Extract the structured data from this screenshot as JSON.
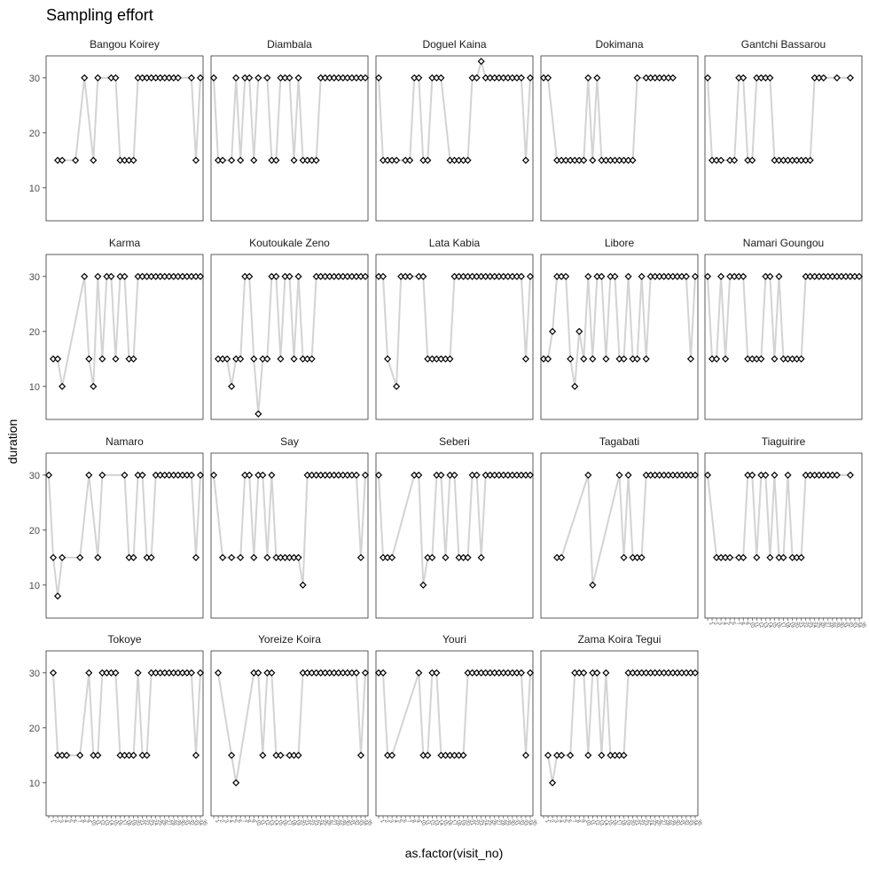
{
  "chart_data": {
    "type": "line",
    "title": "Sampling effort",
    "xlabel": "as.factor(visit_no)",
    "ylabel": "duration",
    "ylim": [
      4,
      34
    ],
    "yticks": [
      10,
      20,
      30
    ],
    "x_levels": 35,
    "facet_ncol": 5,
    "line_color": "#d3d3d3",
    "point_stroke": "#000000",
    "panel_border": "#333333",
    "facets": [
      {
        "name": "Bangou Koirey",
        "x": [
          3,
          4,
          7,
          9,
          11,
          12,
          15,
          16,
          17,
          18,
          19,
          20,
          21,
          22,
          23,
          24,
          25,
          26,
          27,
          28,
          29,
          30,
          33,
          34,
          35
        ],
        "y": [
          15,
          15,
          15,
          30,
          15,
          30,
          30,
          30,
          15,
          15,
          15,
          15,
          30,
          30,
          30,
          30,
          30,
          30,
          30,
          30,
          30,
          30,
          30,
          15,
          30
        ]
      },
      {
        "name": "Diambala",
        "x": [
          1,
          2,
          3,
          5,
          6,
          7,
          8,
          9,
          10,
          11,
          13,
          14,
          15,
          16,
          17,
          18,
          19,
          20,
          21,
          22,
          23,
          24,
          25,
          26,
          27,
          28,
          29,
          30,
          31,
          32,
          33,
          34,
          35
        ],
        "y": [
          30,
          15,
          15,
          15,
          30,
          15,
          30,
          30,
          15,
          30,
          30,
          15,
          15,
          30,
          30,
          30,
          15,
          30,
          15,
          15,
          15,
          15,
          30,
          30,
          30,
          30,
          30,
          30,
          30,
          30,
          30,
          30,
          30
        ]
      },
      {
        "name": "Doguel Kaina",
        "x": [
          1,
          2,
          3,
          4,
          5,
          7,
          8,
          9,
          10,
          11,
          12,
          13,
          14,
          15,
          17,
          18,
          19,
          20,
          21,
          22,
          23,
          24,
          25,
          26,
          27,
          28,
          29,
          30,
          31,
          32,
          33,
          34,
          35
        ],
        "y": [
          30,
          15,
          15,
          15,
          15,
          15,
          15,
          30,
          30,
          15,
          15,
          30,
          30,
          30,
          15,
          15,
          15,
          15,
          15,
          30,
          30,
          33,
          30,
          30,
          30,
          30,
          30,
          30,
          30,
          30,
          30,
          15,
          30
        ]
      },
      {
        "name": "Dokimana",
        "x": [
          1,
          2,
          4,
          5,
          6,
          7,
          8,
          9,
          10,
          11,
          12,
          13,
          14,
          15,
          16,
          17,
          18,
          19,
          20,
          21,
          22,
          24,
          25,
          26,
          27,
          28,
          29,
          30
        ],
        "y": [
          30,
          30,
          15,
          15,
          15,
          15,
          15,
          15,
          15,
          30,
          15,
          30,
          15,
          15,
          15,
          15,
          15,
          15,
          15,
          15,
          30,
          30,
          30,
          30,
          30,
          30,
          30,
          30
        ]
      },
      {
        "name": "Gantchi Bassarou",
        "x": [
          1,
          2,
          3,
          4,
          6,
          7,
          8,
          9,
          10,
          11,
          12,
          13,
          14,
          15,
          16,
          17,
          18,
          19,
          20,
          21,
          22,
          23,
          24,
          25,
          26,
          27,
          30,
          33
        ],
        "y": [
          30,
          15,
          15,
          15,
          15,
          15,
          30,
          30,
          15,
          15,
          30,
          30,
          30,
          30,
          15,
          15,
          15,
          15,
          15,
          15,
          15,
          15,
          15,
          30,
          30,
          30,
          30,
          30
        ]
      },
      {
        "name": "Karma",
        "x": [
          2,
          3,
          4,
          9,
          10,
          11,
          12,
          13,
          14,
          15,
          16,
          17,
          18,
          19,
          20,
          21,
          22,
          23,
          24,
          25,
          26,
          27,
          28,
          29,
          30,
          31,
          32,
          33,
          34,
          35
        ],
        "y": [
          15,
          15,
          10,
          30,
          15,
          10,
          30,
          15,
          30,
          30,
          15,
          30,
          30,
          15,
          15,
          30,
          30,
          30,
          30,
          30,
          30,
          30,
          30,
          30,
          30,
          30,
          30,
          30,
          30,
          30
        ]
      },
      {
        "name": "Koutoukale Zeno",
        "x": [
          2,
          3,
          4,
          5,
          6,
          7,
          8,
          9,
          10,
          11,
          12,
          13,
          14,
          15,
          16,
          17,
          18,
          19,
          20,
          21,
          22,
          23,
          24,
          25,
          26,
          27,
          28,
          29,
          30,
          31,
          32,
          33,
          34,
          35
        ],
        "y": [
          15,
          15,
          15,
          10,
          15,
          15,
          30,
          30,
          15,
          5,
          15,
          15,
          30,
          30,
          15,
          30,
          30,
          15,
          30,
          15,
          15,
          15,
          30,
          30,
          30,
          30,
          30,
          30,
          30,
          30,
          30,
          30,
          30,
          30
        ]
      },
      {
        "name": "Lata Kabia",
        "x": [
          1,
          2,
          3,
          5,
          6,
          7,
          8,
          10,
          11,
          12,
          13,
          14,
          15,
          16,
          17,
          18,
          19,
          20,
          21,
          22,
          23,
          24,
          25,
          26,
          27,
          28,
          29,
          30,
          31,
          32,
          33,
          34,
          35
        ],
        "y": [
          30,
          30,
          15,
          10,
          30,
          30,
          30,
          30,
          30,
          15,
          15,
          15,
          15,
          15,
          15,
          30,
          30,
          30,
          30,
          30,
          30,
          30,
          30,
          30,
          30,
          30,
          30,
          30,
          30,
          30,
          30,
          15,
          30
        ]
      },
      {
        "name": "Libore",
        "x": [
          1,
          2,
          3,
          4,
          5,
          6,
          7,
          8,
          9,
          10,
          11,
          12,
          13,
          14,
          15,
          16,
          17,
          18,
          19,
          20,
          21,
          22,
          23,
          24,
          25,
          26,
          27,
          28,
          29,
          30,
          31,
          32,
          33,
          34,
          35
        ],
        "y": [
          15,
          15,
          20,
          30,
          30,
          30,
          15,
          10,
          20,
          15,
          30,
          15,
          30,
          30,
          15,
          30,
          30,
          15,
          15,
          30,
          15,
          15,
          30,
          15,
          30,
          30,
          30,
          30,
          30,
          30,
          30,
          30,
          30,
          15,
          30
        ]
      },
      {
        "name": "Namari Goungou",
        "x": [
          1,
          2,
          3,
          4,
          5,
          6,
          7,
          8,
          9,
          10,
          11,
          12,
          13,
          14,
          15,
          16,
          17,
          18,
          19,
          20,
          21,
          22,
          23,
          24,
          25,
          26,
          27,
          28,
          29,
          30,
          31,
          32,
          33,
          34,
          35
        ],
        "y": [
          30,
          15,
          15,
          30,
          15,
          30,
          30,
          30,
          30,
          15,
          15,
          15,
          15,
          30,
          30,
          15,
          30,
          15,
          15,
          15,
          15,
          15,
          30,
          30,
          30,
          30,
          30,
          30,
          30,
          30,
          30,
          30,
          30,
          30,
          30
        ]
      },
      {
        "name": "Namaro",
        "x": [
          1,
          2,
          3,
          4,
          8,
          10,
          12,
          13,
          18,
          19,
          20,
          21,
          22,
          23,
          24,
          25,
          26,
          27,
          28,
          29,
          30,
          31,
          32,
          33,
          34,
          35
        ],
        "y": [
          30,
          15,
          8,
          15,
          15,
          30,
          15,
          30,
          30,
          15,
          15,
          30,
          30,
          15,
          15,
          30,
          30,
          30,
          30,
          30,
          30,
          30,
          30,
          30,
          15,
          30
        ]
      },
      {
        "name": "Say",
        "x": [
          1,
          3,
          5,
          7,
          8,
          9,
          10,
          11,
          12,
          13,
          14,
          15,
          16,
          17,
          18,
          19,
          20,
          21,
          22,
          23,
          24,
          25,
          26,
          27,
          28,
          29,
          30,
          31,
          32,
          33,
          34,
          35
        ],
        "y": [
          30,
          15,
          15,
          15,
          30,
          30,
          15,
          30,
          30,
          15,
          30,
          15,
          15,
          15,
          15,
          15,
          15,
          10,
          30,
          30,
          30,
          30,
          30,
          30,
          30,
          30,
          30,
          30,
          30,
          30,
          15,
          30
        ]
      },
      {
        "name": "Seberi",
        "x": [
          1,
          2,
          3,
          4,
          9,
          10,
          11,
          12,
          13,
          14,
          15,
          16,
          17,
          18,
          19,
          20,
          21,
          22,
          23,
          24,
          25,
          26,
          27,
          28,
          29,
          30,
          31,
          32,
          33,
          34,
          35
        ],
        "y": [
          30,
          15,
          15,
          15,
          30,
          30,
          10,
          15,
          15,
          30,
          30,
          15,
          30,
          30,
          15,
          15,
          15,
          30,
          30,
          15,
          30,
          30,
          30,
          30,
          30,
          30,
          30,
          30,
          30,
          30,
          30
        ]
      },
      {
        "name": "Tagabati",
        "x": [
          4,
          5,
          11,
          12,
          18,
          19,
          20,
          21,
          22,
          23,
          24,
          25,
          26,
          27,
          28,
          29,
          30,
          31,
          32,
          33,
          34,
          35
        ],
        "y": [
          15,
          15,
          30,
          10,
          30,
          15,
          30,
          15,
          15,
          15,
          30,
          30,
          30,
          30,
          30,
          30,
          30,
          30,
          30,
          30,
          30,
          30
        ]
      },
      {
        "name": "Tiaguirire",
        "x": [
          1,
          3,
          4,
          5,
          6,
          8,
          9,
          10,
          11,
          12,
          13,
          14,
          15,
          16,
          17,
          18,
          19,
          20,
          21,
          22,
          23,
          24,
          25,
          26,
          27,
          28,
          29,
          30,
          33
        ],
        "y": [
          30,
          15,
          15,
          15,
          15,
          15,
          15,
          30,
          30,
          15,
          30,
          30,
          15,
          30,
          15,
          15,
          30,
          15,
          15,
          15,
          30,
          30,
          30,
          30,
          30,
          30,
          30,
          30,
          30
        ]
      },
      {
        "name": "Tokoye",
        "x": [
          2,
          3,
          4,
          5,
          8,
          10,
          11,
          12,
          13,
          14,
          15,
          16,
          17,
          18,
          19,
          20,
          21,
          22,
          23,
          24,
          25,
          26,
          27,
          28,
          29,
          30,
          31,
          32,
          33,
          34,
          35
        ],
        "y": [
          30,
          15,
          15,
          15,
          15,
          30,
          15,
          15,
          30,
          30,
          30,
          30,
          15,
          15,
          15,
          15,
          30,
          15,
          15,
          30,
          30,
          30,
          30,
          30,
          30,
          30,
          30,
          30,
          30,
          15,
          30
        ]
      },
      {
        "name": "Yoreize Koira",
        "x": [
          2,
          5,
          6,
          10,
          11,
          12,
          13,
          14,
          15,
          16,
          18,
          19,
          20,
          21,
          22,
          23,
          24,
          25,
          26,
          27,
          28,
          29,
          30,
          31,
          32,
          33,
          34,
          35
        ],
        "y": [
          30,
          15,
          10,
          30,
          30,
          15,
          30,
          30,
          15,
          15,
          15,
          15,
          15,
          30,
          30,
          30,
          30,
          30,
          30,
          30,
          30,
          30,
          30,
          30,
          30,
          30,
          15,
          30
        ]
      },
      {
        "name": "Youri",
        "x": [
          1,
          2,
          3,
          4,
          10,
          11,
          12,
          13,
          14,
          15,
          16,
          17,
          18,
          19,
          20,
          21,
          22,
          23,
          24,
          25,
          26,
          27,
          28,
          29,
          30,
          31,
          32,
          33,
          34,
          35
        ],
        "y": [
          30,
          30,
          15,
          15,
          30,
          15,
          15,
          30,
          30,
          15,
          15,
          15,
          15,
          15,
          15,
          30,
          30,
          30,
          30,
          30,
          30,
          30,
          30,
          30,
          30,
          30,
          30,
          30,
          15,
          30
        ]
      },
      {
        "name": "Zama Koira Tegui",
        "x": [
          2,
          3,
          4,
          5,
          7,
          8,
          9,
          10,
          11,
          12,
          13,
          14,
          15,
          16,
          17,
          18,
          19,
          20,
          21,
          22,
          23,
          24,
          25,
          26,
          27,
          28,
          29,
          30,
          31,
          32,
          33,
          34,
          35
        ],
        "y": [
          15,
          10,
          15,
          15,
          15,
          30,
          30,
          30,
          15,
          30,
          30,
          15,
          30,
          15,
          15,
          15,
          15,
          30,
          30,
          30,
          30,
          30,
          30,
          30,
          30,
          30,
          30,
          30,
          30,
          30,
          30,
          30,
          30
        ]
      }
    ]
  }
}
